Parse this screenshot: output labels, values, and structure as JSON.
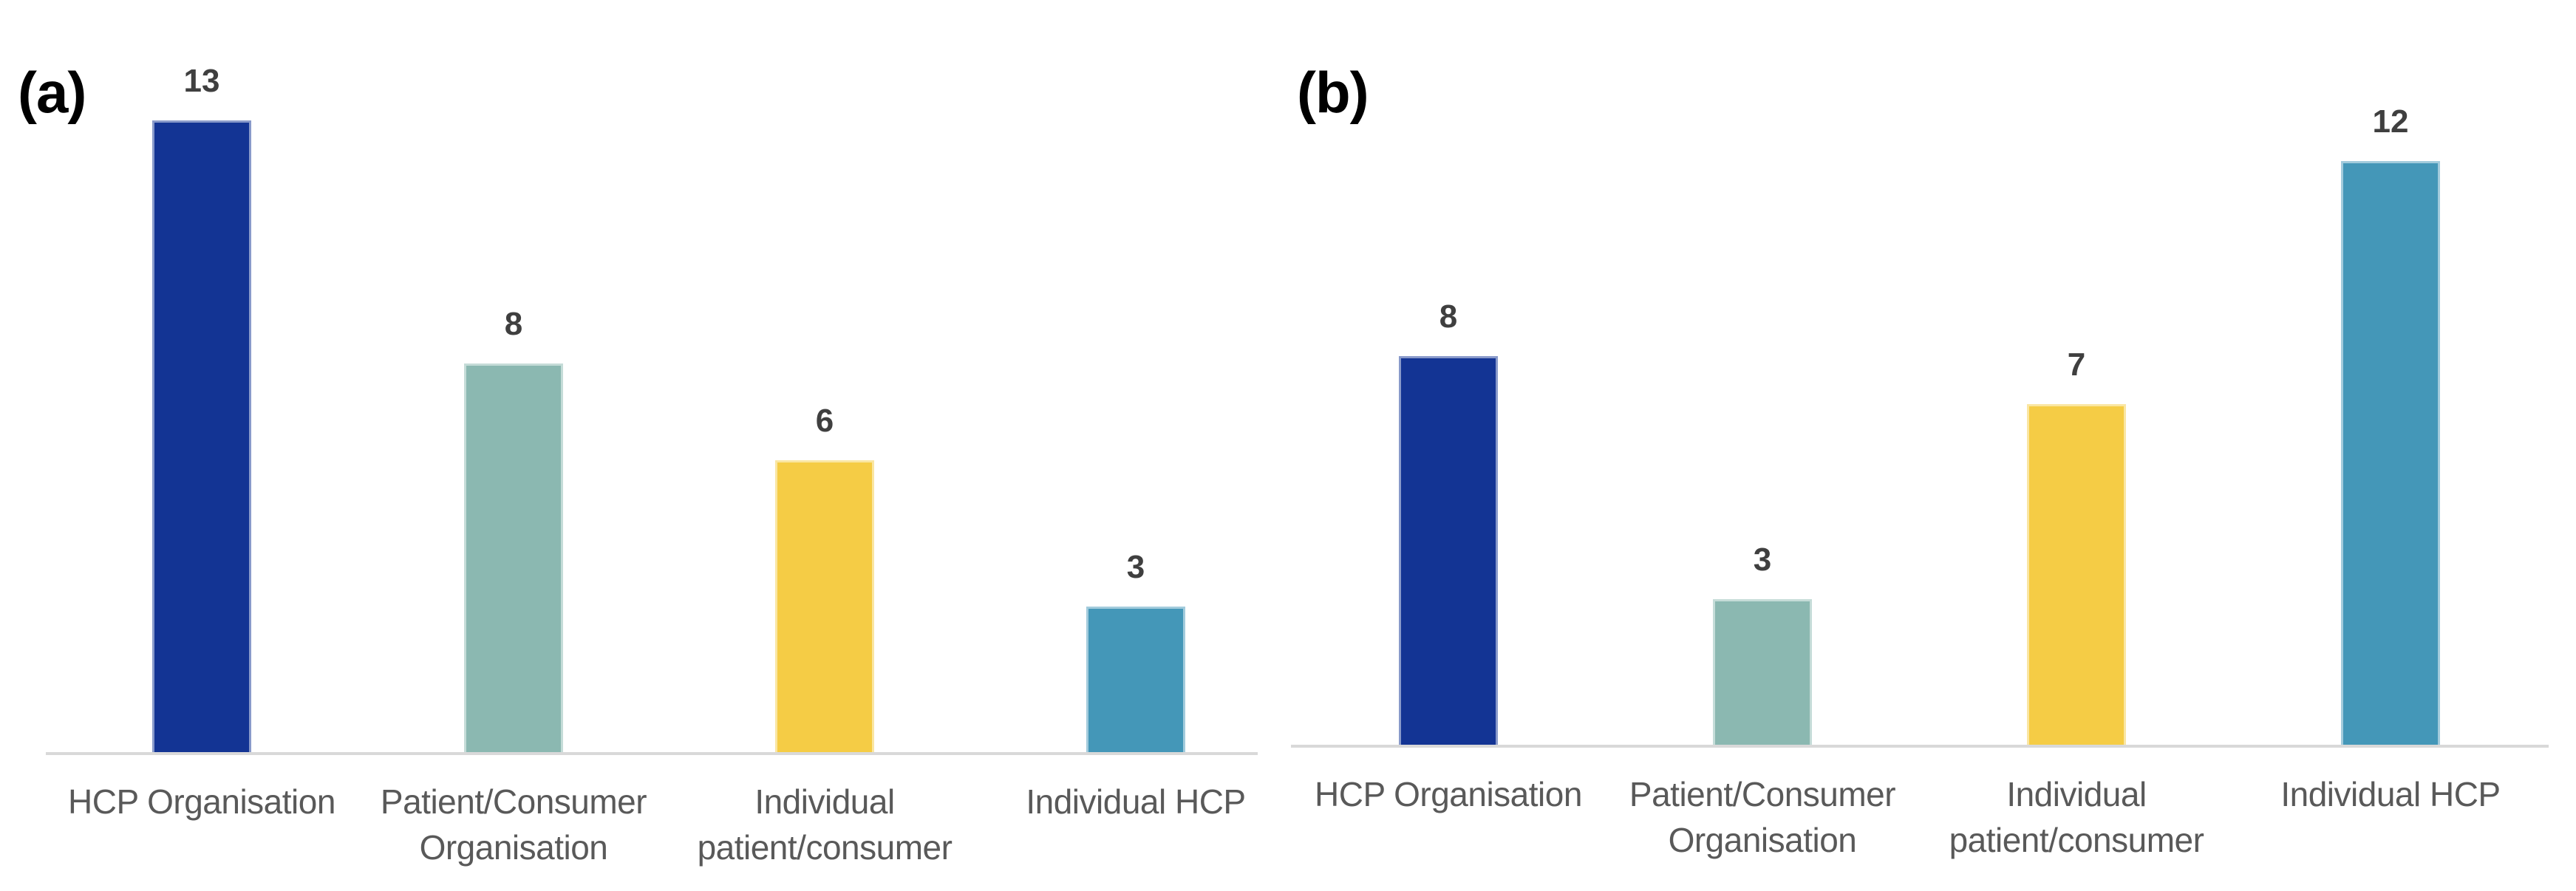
{
  "figure": {
    "background": "#ffffff",
    "axis_color": "#d9d9d9",
    "value_label_color": "#3f3f3f",
    "category_label_color": "#595959",
    "panel_label_color": "#000000"
  },
  "chart_data": [
    {
      "type": "bar",
      "panel_label": "(a)",
      "title": "",
      "xlabel": "",
      "ylabel": "",
      "categories": [
        "HCP Organisation",
        "Patient/Consumer Organisation",
        "Individual patient/consumer",
        "Individual HCP"
      ],
      "category_lines": [
        [
          "HCP Organisation"
        ],
        [
          "Patient/Consumer",
          "Organisation"
        ],
        [
          "Individual",
          "patient/consumer"
        ],
        [
          "Individual HCP"
        ]
      ],
      "values": [
        13,
        8,
        6,
        3
      ],
      "data_labels": [
        "13",
        "8",
        "6",
        "3"
      ],
      "bar_colors": [
        "#133494",
        "#8bb8b1",
        "#f5cc45",
        "#4497b8"
      ],
      "ylim": [
        0,
        14
      ],
      "grid": false,
      "legend": false,
      "data_labels_position": "above-bar"
    },
    {
      "type": "bar",
      "panel_label": "(b)",
      "title": "",
      "xlabel": "",
      "ylabel": "",
      "categories": [
        "HCP Organisation",
        "Patient/Consumer Organisation",
        "Individual patient/consumer",
        "Individual HCP"
      ],
      "category_lines": [
        [
          "HCP Organisation"
        ],
        [
          "Patient/Consumer",
          "Organisation"
        ],
        [
          "Individual",
          "patient/consumer"
        ],
        [
          "Individual HCP"
        ]
      ],
      "values": [
        8,
        3,
        7,
        12
      ],
      "data_labels": [
        "8",
        "3",
        "7",
        "12"
      ],
      "bar_colors": [
        "#133494",
        "#8bb8b1",
        "#f5cc45",
        "#4497b8"
      ],
      "ylim": [
        0,
        14
      ],
      "grid": false,
      "legend": false,
      "data_labels_position": "above-bar"
    }
  ]
}
